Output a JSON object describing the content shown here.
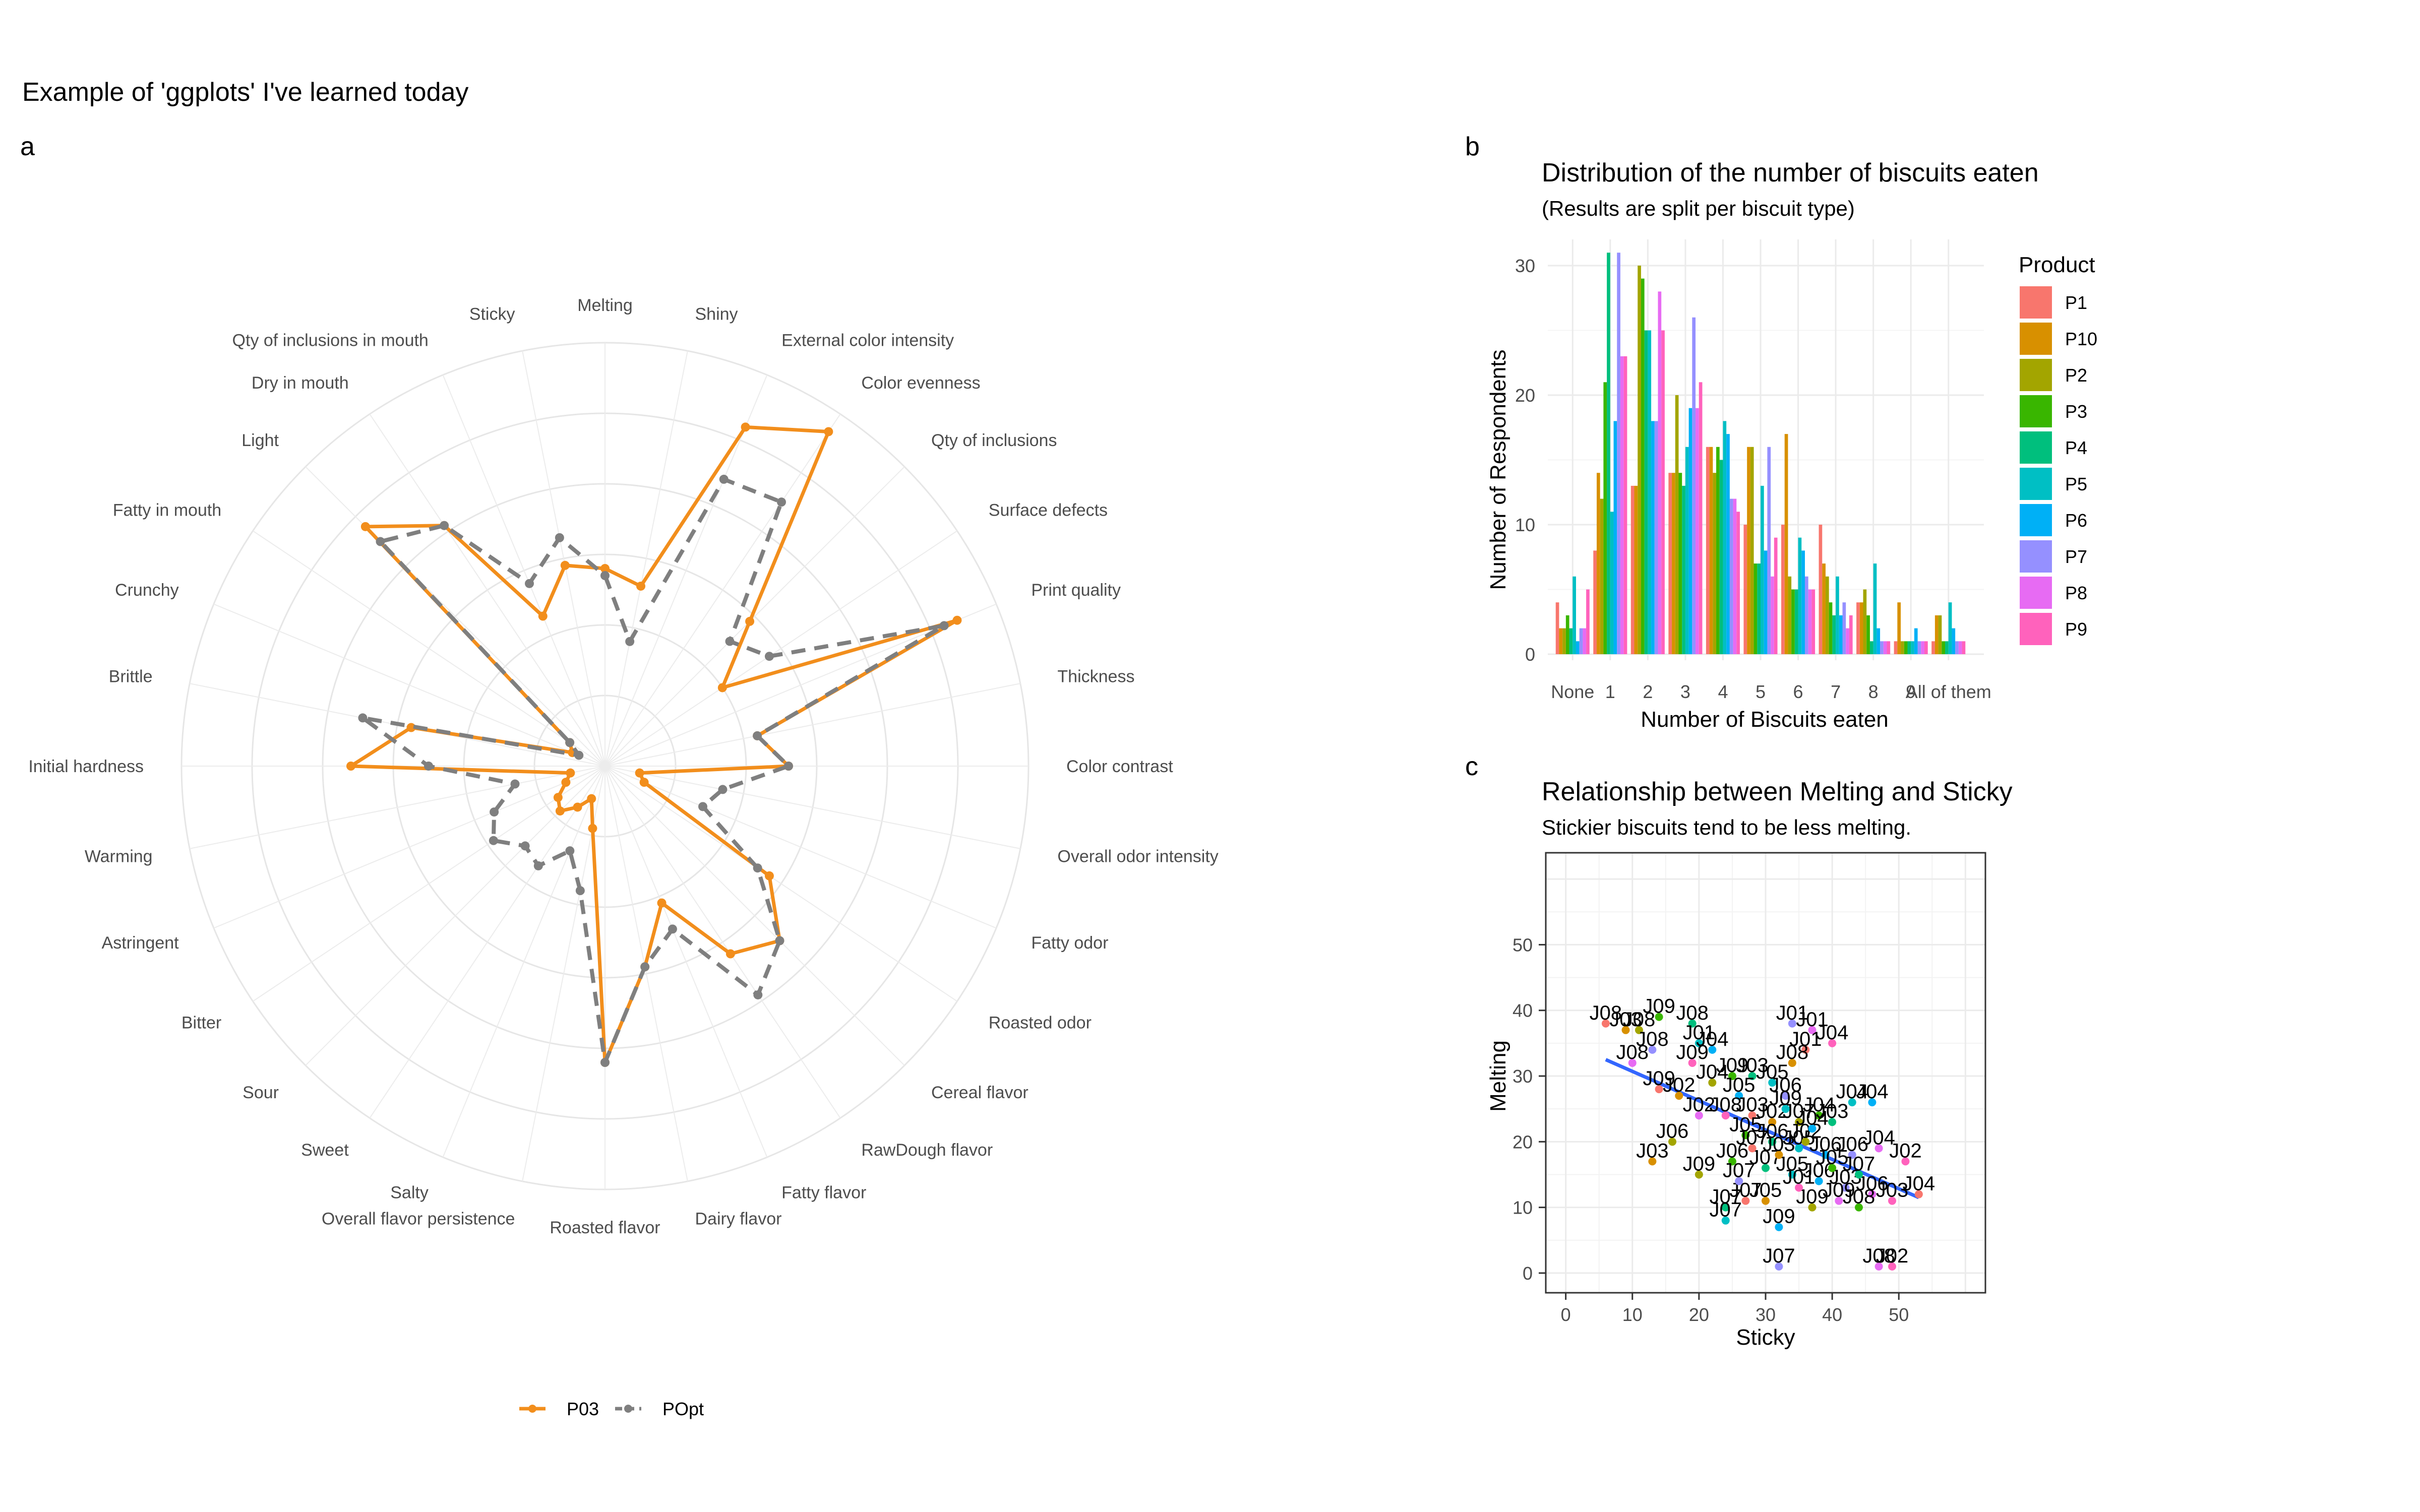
{
  "figure": {
    "title": "Example of 'ggplots' I've learned today",
    "panel_tags": [
      "a",
      "b",
      "c"
    ]
  },
  "chart_data": [
    {
      "type": "radar",
      "panel": "a",
      "rmax": 60,
      "grid_rings": [
        10,
        20,
        30,
        40,
        50,
        60
      ],
      "attributes": [
        "Melting",
        "Shiny",
        "External color intensity",
        "Color evenness",
        "Qty of inclusions",
        "Surface defects",
        "Print quality",
        "Thickness",
        "Color contrast",
        "Overall odor intensity",
        "Fatty odor",
        "Roasted odor",
        "Cereal flavor",
        "RawDough flavor",
        "Fatty flavor",
        "Dairy flavor",
        "Roasted flavor",
        "Overall flavor persistence",
        "Salty",
        "Sweet",
        "Sour",
        "Bitter",
        "Astringent",
        "Warming",
        "Initial hardness",
        "Brittle",
        "Crunchy",
        "Fatty in mouth",
        "Light",
        "Dry in mouth",
        "Qty of inclusions in mouth",
        "Sticky"
      ],
      "series": [
        {
          "name": "P03",
          "color": "#F28E1C",
          "dash": "solid",
          "values": [
            28,
            26,
            52,
            57,
            29,
            20,
            54,
            22,
            26,
            5,
            6,
            28,
            35,
            32,
            21,
            29,
            42,
            9,
            5,
            7,
            9,
            8,
            6,
            5,
            36,
            28,
            5,
            6,
            48,
            41,
            23,
            29
          ]
        },
        {
          "name": "POpt",
          "color": "#7F7F7F",
          "dash": "dashed",
          "values": [
            27,
            18,
            44,
            45,
            25,
            28,
            52,
            22,
            26,
            17,
            15,
            26,
            35,
            39,
            25,
            29,
            42,
            18,
            13,
            17,
            16,
            19,
            17,
            13,
            25,
            35,
            4,
            6,
            45,
            41,
            28,
            33
          ]
        }
      ],
      "legend": {
        "position": "bottom"
      }
    },
    {
      "type": "bar",
      "panel": "b",
      "title": "Distribution of the number of biscuits eaten",
      "subtitle": "(Results are split per biscuit type)",
      "xlabel": "Number of Biscuits eaten",
      "ylabel": "Number of Respondents",
      "ylim": [
        0,
        32
      ],
      "yticks": [
        0,
        10,
        20,
        30
      ],
      "categories": [
        "None",
        "1",
        "2",
        "3",
        "4",
        "5",
        "6",
        "7",
        "8",
        "9",
        "All of them"
      ],
      "legend": {
        "title": "Product",
        "position": "right"
      },
      "series": [
        {
          "name": "P1",
          "color": "#F8766D",
          "values": [
            4,
            8,
            13,
            14,
            16,
            10,
            10,
            10,
            4,
            1,
            1
          ]
        },
        {
          "name": "P10",
          "color": "#D89000",
          "values": [
            2,
            14,
            13,
            14,
            16,
            16,
            17,
            7,
            4,
            4,
            3
          ]
        },
        {
          "name": "P2",
          "color": "#A3A500",
          "values": [
            2,
            12,
            30,
            20,
            14,
            16,
            6,
            6,
            5,
            1,
            3
          ]
        },
        {
          "name": "P3",
          "color": "#39B600",
          "values": [
            3,
            21,
            29,
            14,
            16,
            7,
            5,
            4,
            3,
            1,
            1
          ]
        },
        {
          "name": "P4",
          "color": "#00BF7D",
          "values": [
            2,
            31,
            25,
            13,
            15,
            7,
            5,
            3,
            1,
            1,
            1
          ]
        },
        {
          "name": "P5",
          "color": "#00BFC4",
          "values": [
            6,
            11,
            25,
            16,
            18,
            13,
            9,
            6,
            7,
            1,
            4
          ]
        },
        {
          "name": "P6",
          "color": "#00B0F6",
          "values": [
            1,
            18,
            18,
            19,
            17,
            8,
            8,
            3,
            2,
            2,
            2
          ]
        },
        {
          "name": "P7",
          "color": "#9590FF",
          "values": [
            2,
            31,
            18,
            26,
            12,
            16,
            6,
            4,
            1,
            1,
            1
          ]
        },
        {
          "name": "P8",
          "color": "#E76BF3",
          "values": [
            2,
            23,
            28,
            19,
            12,
            6,
            5,
            2,
            1,
            1,
            1
          ]
        },
        {
          "name": "P9",
          "color": "#FF62BC",
          "values": [
            5,
            23,
            25,
            21,
            11,
            9,
            5,
            3,
            1,
            1,
            1
          ]
        }
      ]
    },
    {
      "type": "scatter",
      "panel": "c",
      "title": "Relationship between Melting and Sticky",
      "subtitle": "Stickier biscuits tend to be less melting.",
      "xlabel": "Sticky",
      "ylabel": "Melting",
      "xlim": [
        -3,
        63
      ],
      "ylim": [
        -3,
        64
      ],
      "xticks": [
        0,
        10,
        20,
        30,
        40,
        50
      ],
      "yticks": [
        0,
        10,
        20,
        30,
        40,
        50
      ],
      "trend": {
        "x": [
          6,
          53
        ],
        "y": [
          32.5,
          11.5
        ],
        "color": "#3366FF"
      },
      "points": [
        {
          "x": 6,
          "y": 38,
          "label": "J08"
        },
        {
          "x": 9,
          "y": 37,
          "label": "J03"
        },
        {
          "x": 11,
          "y": 37,
          "label": "J08"
        },
        {
          "x": 14,
          "y": 39,
          "label": "J09"
        },
        {
          "x": 19,
          "y": 38,
          "label": "J08"
        },
        {
          "x": 20,
          "y": 35,
          "label": "J01"
        },
        {
          "x": 22,
          "y": 34,
          "label": "J04"
        },
        {
          "x": 13,
          "y": 34,
          "label": "J08"
        },
        {
          "x": 10,
          "y": 32,
          "label": "J08"
        },
        {
          "x": 19,
          "y": 32,
          "label": "J09"
        },
        {
          "x": 14,
          "y": 28,
          "label": "J09"
        },
        {
          "x": 17,
          "y": 27,
          "label": "J02"
        },
        {
          "x": 22,
          "y": 29,
          "label": "J04"
        },
        {
          "x": 25,
          "y": 30,
          "label": "J09"
        },
        {
          "x": 28,
          "y": 30,
          "label": "J03"
        },
        {
          "x": 31,
          "y": 29,
          "label": "J05"
        },
        {
          "x": 26,
          "y": 27,
          "label": "J05"
        },
        {
          "x": 33,
          "y": 27,
          "label": "J06"
        },
        {
          "x": 20,
          "y": 24,
          "label": "J02"
        },
        {
          "x": 24,
          "y": 24,
          "label": "J08"
        },
        {
          "x": 28,
          "y": 24,
          "label": "J03"
        },
        {
          "x": 31,
          "y": 23,
          "label": "J02"
        },
        {
          "x": 35,
          "y": 23,
          "label": "J07"
        },
        {
          "x": 38,
          "y": 24,
          "label": "J04"
        },
        {
          "x": 40,
          "y": 23,
          "label": "J03"
        },
        {
          "x": 43,
          "y": 26,
          "label": "J04"
        },
        {
          "x": 46,
          "y": 26,
          "label": "J04"
        },
        {
          "x": 34,
          "y": 38,
          "label": "J01"
        },
        {
          "x": 37,
          "y": 37,
          "label": "J01"
        },
        {
          "x": 40,
          "y": 35,
          "label": "J04"
        },
        {
          "x": 36,
          "y": 34,
          "label": "J01"
        },
        {
          "x": 34,
          "y": 32,
          "label": "J08"
        },
        {
          "x": 16,
          "y": 20,
          "label": "J06"
        },
        {
          "x": 27,
          "y": 21,
          "label": "J05"
        },
        {
          "x": 31,
          "y": 20,
          "label": "J06"
        },
        {
          "x": 35,
          "y": 19,
          "label": "J05"
        },
        {
          "x": 39,
          "y": 18,
          "label": "J06"
        },
        {
          "x": 43,
          "y": 18,
          "label": "J06"
        },
        {
          "x": 47,
          "y": 19,
          "label": "J04"
        },
        {
          "x": 51,
          "y": 17,
          "label": "J02"
        },
        {
          "x": 53,
          "y": 12,
          "label": "J04"
        },
        {
          "x": 13,
          "y": 17,
          "label": "J03"
        },
        {
          "x": 20,
          "y": 15,
          "label": "J09"
        },
        {
          "x": 25,
          "y": 17,
          "label": "J06"
        },
        {
          "x": 30,
          "y": 16,
          "label": "J07"
        },
        {
          "x": 34,
          "y": 15,
          "label": "J05"
        },
        {
          "x": 38,
          "y": 14,
          "label": "J06"
        },
        {
          "x": 42,
          "y": 13,
          "label": "J03"
        },
        {
          "x": 46,
          "y": 12,
          "label": "J06"
        },
        {
          "x": 49,
          "y": 11,
          "label": "J03"
        },
        {
          "x": 27,
          "y": 11,
          "label": "J07"
        },
        {
          "x": 30,
          "y": 11,
          "label": "J05"
        },
        {
          "x": 37,
          "y": 10,
          "label": "J09"
        },
        {
          "x": 44,
          "y": 10,
          "label": "J08"
        },
        {
          "x": 24,
          "y": 10,
          "label": "J07"
        },
        {
          "x": 24,
          "y": 8,
          "label": "J07"
        },
        {
          "x": 32,
          "y": 7,
          "label": "J09"
        },
        {
          "x": 32,
          "y": 1,
          "label": "J07"
        },
        {
          "x": 47,
          "y": 1,
          "label": "J08"
        },
        {
          "x": 49,
          "y": 1,
          "label": "J02"
        },
        {
          "x": 28,
          "y": 19,
          "label": "J07"
        },
        {
          "x": 32,
          "y": 18,
          "label": "J03"
        },
        {
          "x": 36,
          "y": 20,
          "label": "J02"
        },
        {
          "x": 40,
          "y": 16,
          "label": "J05"
        },
        {
          "x": 44,
          "y": 15,
          "label": "J07"
        },
        {
          "x": 33,
          "y": 25,
          "label": "J09"
        },
        {
          "x": 37,
          "y": 22,
          "label": "J04"
        },
        {
          "x": 26,
          "y": 14,
          "label": "J07"
        },
        {
          "x": 41,
          "y": 11,
          "label": "J09"
        },
        {
          "x": 35,
          "y": 13,
          "label": "J01"
        }
      ]
    }
  ]
}
